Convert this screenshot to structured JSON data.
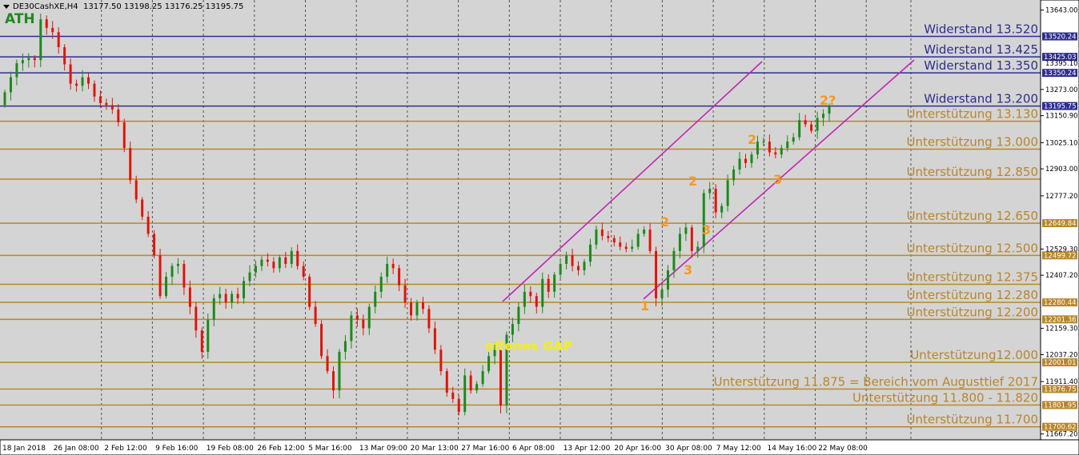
{
  "header": {
    "symbol": "DE30CashXE,H4",
    "ohlc": "13177.50 13198.25 13176.25 13195.75"
  },
  "ath_label": "ATH",
  "chart_data": {
    "type": "candlestick",
    "ylim": [
      11640,
      13690
    ],
    "price_ticks": [
      "13643.00",
      "13273.00",
      "13150.90",
      "13025.10",
      "12903.00",
      "12777.20",
      "12529.30",
      "12407.20",
      "12159.30",
      "12037.20",
      "11911.40",
      "11667.20"
    ],
    "price_tick_values": [
      13643,
      13273,
      13150.9,
      13025.1,
      12903,
      12777.2,
      12529.3,
      12407.2,
      12159.3,
      12037.2,
      11911.4,
      11667.2
    ],
    "date_labels": [
      "18 Jan 2018",
      "26 Jan 08:00",
      "2 Feb 12:00",
      "9 Feb 16:00",
      "19 Feb 08:00",
      "26 Feb 12:00",
      "5 Mar 16:00",
      "13 Mar 09:00",
      "20 Mar 13:00",
      "27 Mar 16:00",
      "6 Apr 08:00",
      "13 Apr 12:00",
      "20 Apr 16:00",
      "30 Apr 08:00",
      "7 May 12:00",
      "14 May 16:00",
      "22 May 08:00"
    ],
    "closes": [
      13260,
      13330,
      13395,
      13410,
      13420,
      13410,
      13600,
      13560,
      13540,
      13470,
      13390,
      13300,
      13290,
      13330,
      13300,
      13240,
      13210,
      13200,
      13180,
      13120,
      13000,
      12850,
      12760,
      12680,
      12600,
      12500,
      12310,
      12400,
      12450,
      12460,
      12350,
      12260,
      12150,
      12050,
      12200,
      12300,
      12320,
      12280,
      12320,
      12300,
      12380,
      12420,
      12450,
      12480,
      12470,
      12440,
      12490,
      12460,
      12520,
      12450,
      12400,
      12260,
      12180,
      12030,
      11960,
      11870,
      12050,
      12100,
      12220,
      12200,
      12160,
      12260,
      12330,
      12400,
      12460,
      12440,
      12360,
      12280,
      12220,
      12280,
      12250,
      12160,
      12060,
      11960,
      11860,
      11830,
      11770,
      11940,
      11870,
      11900,
      11960,
      12030,
      12060,
      11800,
      12130,
      12180,
      12260,
      12330,
      12310,
      12260,
      12390,
      12330,
      12410,
      12460,
      12500,
      12450,
      12430,
      12470,
      12550,
      12620,
      12590,
      12580,
      12560,
      12540,
      12530,
      12540,
      12600,
      12620,
      12520,
      12300,
      12340,
      12430,
      12520,
      12600,
      12630,
      12520,
      12540,
      12790,
      12810,
      12700,
      12730,
      12850,
      12900,
      12950,
      12930,
      12970,
      13030,
      13030,
      12980,
      12970,
      13000,
      13030,
      13050,
      13130,
      13110,
      13080,
      13140,
      13160,
      13196
    ],
    "lines": [
      {
        "value": 13520.24,
        "color": "#2e2e8e",
        "label": "Widerstand 13.520",
        "price_tag": "13520.24",
        "tag_dark": true
      },
      {
        "value": 13425.03,
        "color": "#2e2e8e",
        "label": "Widerstand 13.425",
        "price_tag": "13425.03",
        "tag_dark": true
      },
      {
        "value": 13350.24,
        "color": "#2e2e8e",
        "label": "Widerstand 13.350",
        "price_tag": "13350.24",
        "tag_dark": true
      },
      {
        "value": 13195.75,
        "color": "#2e2e8e",
        "label": "Widerstand 13.200",
        "price_tag": "13195.75",
        "tag_dark": true
      },
      {
        "value": 13125,
        "color": "#b8862b",
        "label": "Unterstützung 13.130",
        "price_tag": "",
        "tag_dark": false
      },
      {
        "value": 12995,
        "color": "#b8862b",
        "label": "Unterstützung 13.000",
        "price_tag": "",
        "tag_dark": false
      },
      {
        "value": 12855,
        "color": "#b8862b",
        "label": "Unterstützung 12.850",
        "price_tag": "",
        "tag_dark": false
      },
      {
        "value": 12649.84,
        "color": "#b8862b",
        "label": "Unterstützung 12.650",
        "price_tag": "12649.84",
        "tag_dark": false
      },
      {
        "value": 12499.72,
        "color": "#b8862b",
        "label": "Unterstützung 12.500",
        "price_tag": "12499.72",
        "tag_dark": false
      },
      {
        "value": 12365,
        "color": "#b8862b",
        "label": "Unterstützung 12.375",
        "price_tag": "",
        "tag_dark": false
      },
      {
        "value": 12280.44,
        "color": "#b8862b",
        "label": "Unterstützung 12.280",
        "price_tag": "12280.44",
        "tag_dark": false
      },
      {
        "value": 12201.36,
        "color": "#b8862b",
        "label": "Unterstützung 12.200",
        "price_tag": "12201.36",
        "tag_dark": false
      },
      {
        "value": 12001.01,
        "color": "#b8862b",
        "label": "Unterstützung12.000",
        "price_tag": "12001.01",
        "tag_dark": false
      },
      {
        "value": 11876.75,
        "color": "#b8862b",
        "label": "Unterstützung 11.875 = Bereich vom Augusttief 2017",
        "price_tag": "11876.75",
        "tag_dark": false
      },
      {
        "value": 11801.95,
        "color": "#b8862b",
        "label": "Unterstützung 11.800 - 11.820",
        "price_tag": "11801.95",
        "tag_dark": false
      },
      {
        "value": 11700.62,
        "color": "#b8862b",
        "label": "Unterstützung 11.700",
        "price_tag": "11700.62",
        "tag_dark": false
      }
    ],
    "extra_tags": [
      {
        "value": 13395.1,
        "text": "13395.10"
      }
    ],
    "annotations": [
      {
        "text": "offenes GAP",
        "color": "#f2ee1e",
        "x": 606,
        "y": 438
      },
      {
        "text": "1",
        "color": "#f39a1f",
        "x": 800,
        "y": 388
      },
      {
        "text": "2",
        "color": "#f39a1f",
        "x": 825,
        "y": 283
      },
      {
        "text": "3",
        "color": "#f39a1f",
        "x": 854,
        "y": 343
      },
      {
        "text": "2",
        "color": "#f39a1f",
        "x": 860,
        "y": 232
      },
      {
        "text": "3",
        "color": "#f39a1f",
        "x": 877,
        "y": 293
      },
      {
        "text": "2",
        "color": "#f39a1f",
        "x": 934,
        "y": 180
      },
      {
        "text": "3",
        "color": "#f39a1f",
        "x": 966,
        "y": 230
      },
      {
        "text": "2?",
        "color": "#f39a1f",
        "x": 1024,
        "y": 131
      }
    ]
  },
  "colors": {
    "bull": "#1b8a1b",
    "bear": "#e0140a",
    "channel": "#c026b4",
    "grid": "#555555",
    "axis_bg": "#ffffff"
  }
}
